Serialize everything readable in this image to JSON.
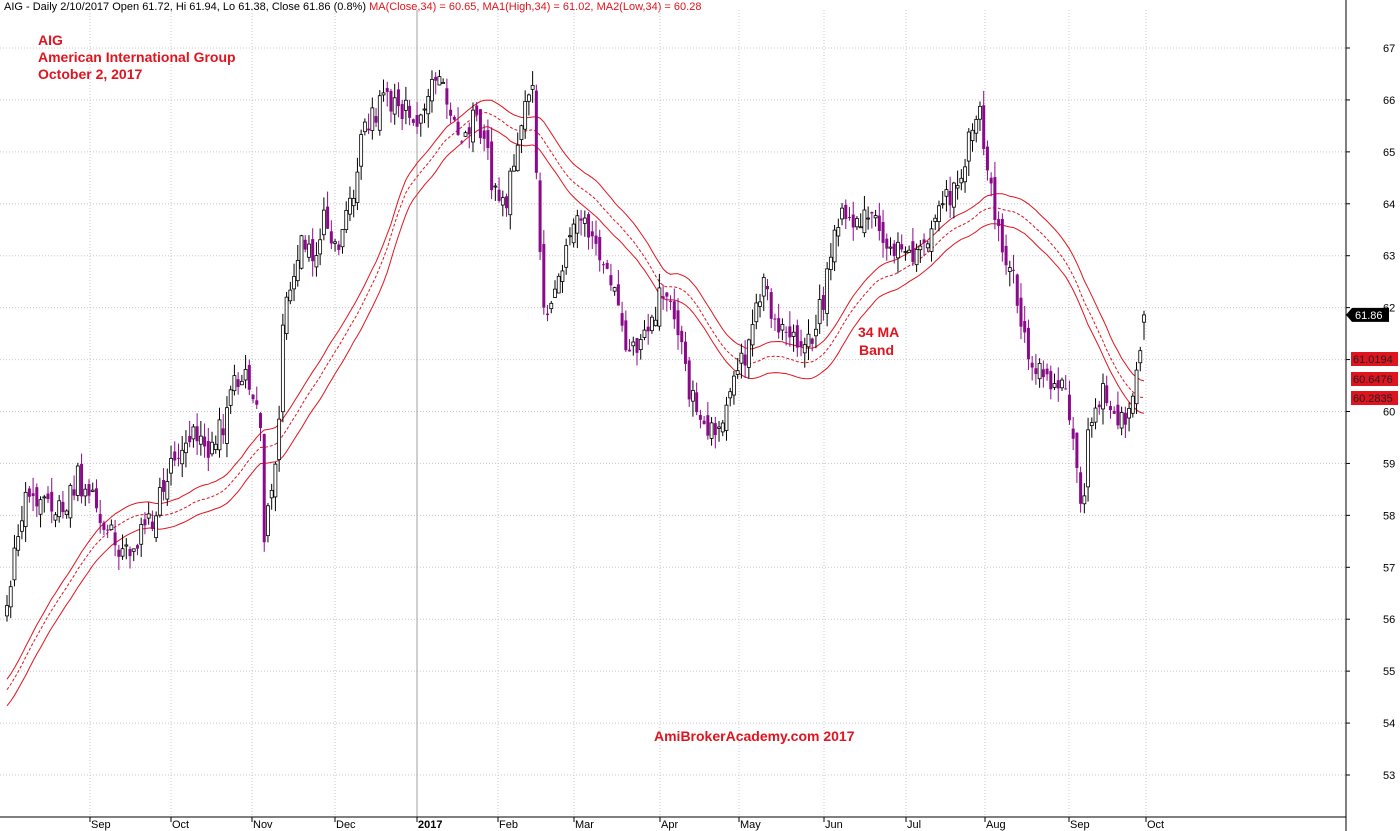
{
  "header": {
    "prefix": "AIG - Daily 2/10/2017 Open 61.72, Hi 61.94, Lo 61.38, Close 61.86 (0.8%)",
    "ma_close": "MA(Close,34) = 60.65,",
    "ma_high": "MA1(High,34) = 61.02,",
    "ma_low": "MA2(Low,34) = 60.28"
  },
  "annotations": {
    "ticker": "AIG",
    "company": "American International Group",
    "date": "October 2, 2017",
    "band_line1": "34 MA",
    "band_line2": "Band",
    "watermark": "AmiBrokerAcademy.com  2017"
  },
  "colors": {
    "up_candle": "#000000",
    "down_candle": "#8b0a8b",
    "ma_line": "#e0141e",
    "grid": "#c8c8c8",
    "price_tag_bg": "#000000",
    "ma_tag_bg": "#e0141e"
  },
  "chart_data": {
    "type": "candlestick",
    "title": "",
    "ylim": [
      52.3,
      67.3
    ],
    "y_ticks": [
      53,
      54,
      55,
      56,
      57,
      58,
      59,
      60,
      61,
      62,
      63,
      64,
      65,
      66,
      67
    ],
    "grid": true,
    "x_ticks": [
      "Sep",
      "Oct",
      "Nov",
      "Dec",
      "2017",
      "Feb",
      "Mar",
      "Apr",
      "May",
      "Jun",
      "Jul",
      "Aug",
      "Sep",
      "Oct"
    ],
    "price_anchors": [
      [
        "2016-08-01",
        56.3
      ],
      [
        "2016-08-03",
        57.3
      ],
      [
        "2016-08-05",
        58.1
      ],
      [
        "2016-08-08",
        58.4
      ],
      [
        "2016-08-15",
        58.3
      ],
      [
        "2016-08-22",
        58.0
      ],
      [
        "2016-08-26",
        58.8
      ],
      [
        "2016-09-01",
        58.3
      ],
      [
        "2016-09-06",
        57.8
      ],
      [
        "2016-09-12",
        57.3
      ],
      [
        "2016-09-16",
        57.2
      ],
      [
        "2016-09-20",
        57.7
      ],
      [
        "2016-09-26",
        58.2
      ],
      [
        "2016-09-30",
        58.9
      ],
      [
        "2016-10-05",
        59.3
      ],
      [
        "2016-10-10",
        59.6
      ],
      [
        "2016-10-14",
        59.2
      ],
      [
        "2016-10-20",
        59.7
      ],
      [
        "2016-10-25",
        60.5
      ],
      [
        "2016-10-28",
        60.9
      ],
      [
        "2016-11-01",
        60.2
      ],
      [
        "2016-11-03",
        59.8
      ],
      [
        "2016-11-04",
        57.4
      ],
      [
        "2016-11-08",
        58.6
      ],
      [
        "2016-11-10",
        59.8
      ],
      [
        "2016-11-11",
        61.8
      ],
      [
        "2016-11-15",
        62.5
      ],
      [
        "2016-11-18",
        63.4
      ],
      [
        "2016-11-23",
        63.1
      ],
      [
        "2016-11-28",
        63.7
      ],
      [
        "2016-12-02",
        63.2
      ],
      [
        "2016-12-05",
        63.4
      ],
      [
        "2016-12-08",
        64.3
      ],
      [
        "2016-12-14",
        65.6
      ],
      [
        "2016-12-20",
        66.0
      ],
      [
        "2016-12-27",
        65.8
      ],
      [
        "2017-01-03",
        65.6
      ],
      [
        "2017-01-06",
        66.2
      ],
      [
        "2017-01-10",
        66.4
      ],
      [
        "2017-01-13",
        65.8
      ],
      [
        "2017-01-18",
        65.4
      ],
      [
        "2017-01-23",
        65.7
      ],
      [
        "2017-01-26",
        65.1
      ],
      [
        "2017-01-31",
        64.3
      ],
      [
        "2017-02-03",
        63.9
      ],
      [
        "2017-02-07",
        64.7
      ],
      [
        "2017-02-10",
        65.8
      ],
      [
        "2017-02-14",
        66.1
      ],
      [
        "2017-02-17",
        61.8
      ],
      [
        "2017-02-22",
        62.2
      ],
      [
        "2017-02-27",
        63.3
      ],
      [
        "2017-03-02",
        63.9
      ],
      [
        "2017-03-07",
        63.5
      ],
      [
        "2017-03-10",
        62.9
      ],
      [
        "2017-03-15",
        62.5
      ],
      [
        "2017-03-20",
        61.5
      ],
      [
        "2017-03-24",
        61.0
      ],
      [
        "2017-03-29",
        61.6
      ],
      [
        "2017-04-03",
        62.4
      ],
      [
        "2017-04-07",
        62.0
      ],
      [
        "2017-04-11",
        61.5
      ],
      [
        "2017-04-13",
        60.4
      ],
      [
        "2017-04-19",
        59.6
      ],
      [
        "2017-04-24",
        59.5
      ],
      [
        "2017-04-28",
        60.2
      ],
      [
        "2017-05-03",
        60.9
      ],
      [
        "2017-05-08",
        61.6
      ],
      [
        "2017-05-11",
        62.5
      ],
      [
        "2017-05-16",
        61.8
      ],
      [
        "2017-05-19",
        61.4
      ],
      [
        "2017-05-24",
        61.3
      ],
      [
        "2017-05-30",
        61.5
      ],
      [
        "2017-06-05",
        62.8
      ],
      [
        "2017-06-09",
        63.8
      ],
      [
        "2017-06-14",
        63.6
      ],
      [
        "2017-06-19",
        63.9
      ],
      [
        "2017-06-23",
        63.7
      ],
      [
        "2017-06-28",
        63.2
      ],
      [
        "2017-07-03",
        63.0
      ],
      [
        "2017-07-07",
        62.9
      ],
      [
        "2017-07-12",
        63.3
      ],
      [
        "2017-07-17",
        63.9
      ],
      [
        "2017-07-21",
        64.2
      ],
      [
        "2017-07-25",
        64.3
      ],
      [
        "2017-07-27",
        65.3
      ],
      [
        "2017-08-01",
        65.9
      ],
      [
        "2017-08-03",
        64.5
      ],
      [
        "2017-08-07",
        63.6
      ],
      [
        "2017-08-10",
        62.9
      ],
      [
        "2017-08-14",
        62.7
      ],
      [
        "2017-08-17",
        61.3
      ],
      [
        "2017-08-22",
        60.8
      ],
      [
        "2017-08-28",
        60.4
      ],
      [
        "2017-09-01",
        60.6
      ],
      [
        "2017-09-05",
        59.6
      ],
      [
        "2017-09-07",
        58.2
      ],
      [
        "2017-09-11",
        59.8
      ],
      [
        "2017-09-15",
        60.4
      ],
      [
        "2017-09-20",
        59.8
      ],
      [
        "2017-09-25",
        59.7
      ],
      [
        "2017-09-28",
        60.7
      ],
      [
        "2017-10-02",
        61.86
      ]
    ],
    "last_candle": {
      "date": "2017-10-02",
      "open": 61.72,
      "high": 61.94,
      "low": 61.38,
      "close": 61.86
    },
    "series": [
      {
        "name": "MA(Close,34)",
        "style": "dashed",
        "last": 60.6476
      },
      {
        "name": "MA1(High,34)",
        "style": "solid",
        "last": 61.0194
      },
      {
        "name": "MA2(Low,34)",
        "style": "solid",
        "last": 60.2835
      }
    ],
    "price_tags": {
      "close": "61.86",
      "ma_high": "61.0194",
      "ma_close": "60.6476",
      "ma_low": "60.2835"
    }
  }
}
